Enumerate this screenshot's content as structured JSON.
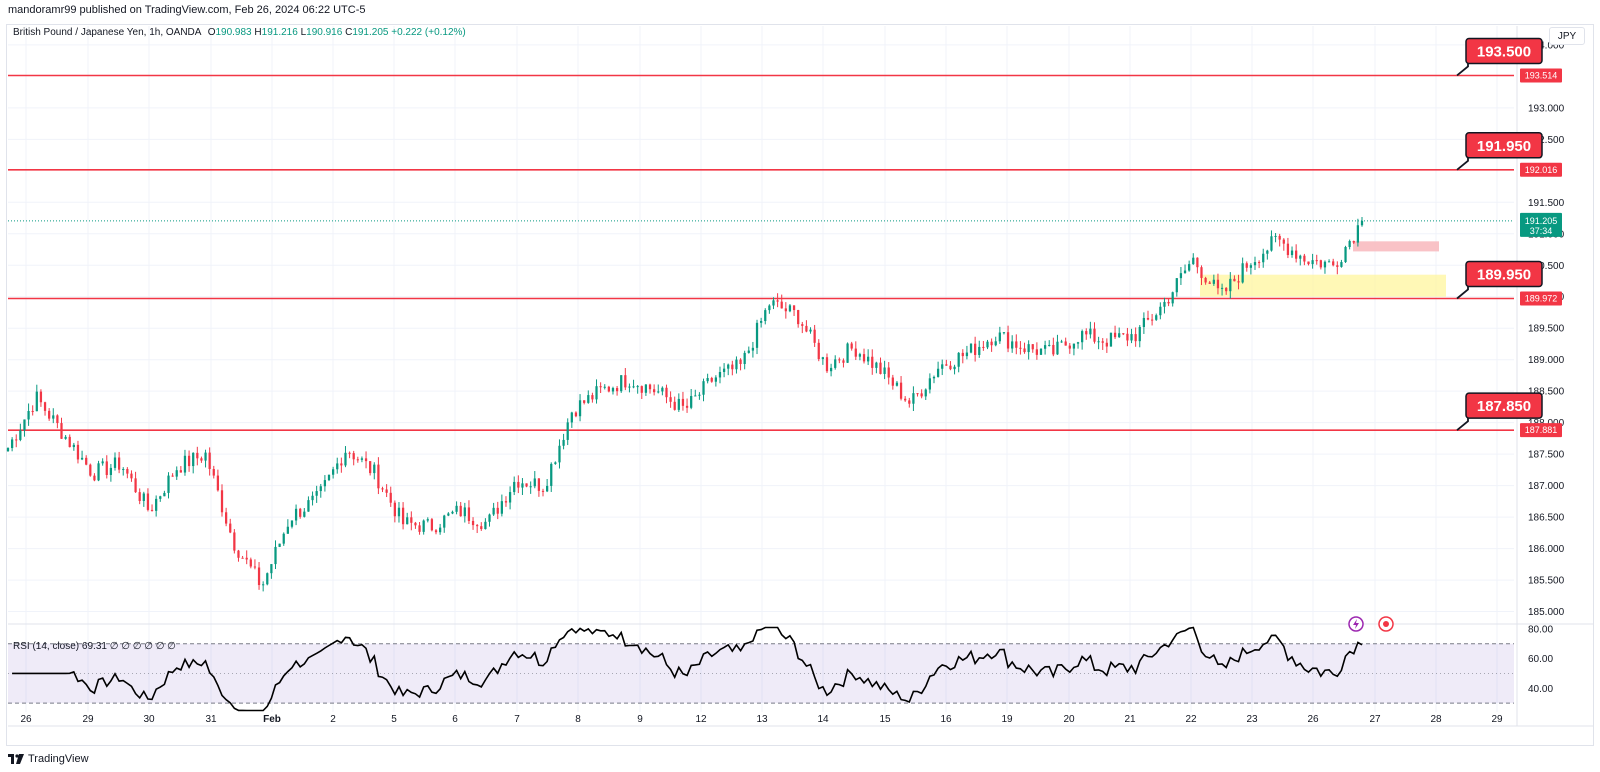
{
  "header": {
    "publisher": "mandoramr99 published on TradingView.com, Feb 26, 2024 06:22 UTC-5"
  },
  "legend": {
    "symbol": "British Pound / Japanese Yen, 1h, OANDA",
    "o_label": "O",
    "o": "190.983",
    "h_label": "H",
    "h": "191.216",
    "l_label": "L",
    "l": "190.916",
    "c_label": "C",
    "c": "191.205",
    "change": "+0.222 (+0.12%)"
  },
  "currency_button": "JPY",
  "rsi_legend": {
    "label": "RSI (14, close)",
    "value": "69.31",
    "extras": "∅ ∅ ∅ ∅ ∅ ∅"
  },
  "footer": {
    "brand": "TradingView"
  },
  "colors": {
    "up": "#089981",
    "down": "#f23645",
    "level_line": "#f23645",
    "callout_bg": "#f23645",
    "rsi_line": "#000000",
    "rsi_band": "#7e57c2",
    "yellow_zone": "#fff59d",
    "pink_zone": "#f8bbc0"
  },
  "icons": [
    "lightning-icon",
    "target-icon",
    "tradingview-logo-icon"
  ],
  "chart_data": {
    "type": "candlestick",
    "title": "British Pound / Japanese Yen, 1h, OANDA",
    "price_axis": {
      "min": 184.85,
      "max": 194.3,
      "ticks": [
        "185.000",
        "185.500",
        "186.000",
        "186.500",
        "187.000",
        "187.500",
        "188.000",
        "188.500",
        "189.000",
        "189.500",
        "190.000",
        "190.500",
        "191.000",
        "191.500",
        "192.500",
        "193.000",
        "194.000"
      ]
    },
    "time_axis": {
      "labels": [
        "26",
        "29",
        "30",
        "31",
        "Feb",
        "2",
        "5",
        "6",
        "7",
        "8",
        "9",
        "12",
        "13",
        "14",
        "15",
        "16",
        "19",
        "20",
        "21",
        "22",
        "23",
        "26",
        "27",
        "28",
        "29"
      ]
    },
    "last_price": {
      "value": "191.205",
      "countdown": "37:34"
    },
    "levels": [
      {
        "price": 193.514,
        "tag": "193.514",
        "callout": "193.500"
      },
      {
        "price": 192.016,
        "tag": "192.016",
        "callout": "191.950"
      },
      {
        "price": 189.972,
        "tag": "189.972",
        "callout": "189.950"
      },
      {
        "price": 187.881,
        "tag": "187.881",
        "callout": "187.850"
      }
    ],
    "zones": [
      {
        "name": "demand-zone",
        "from_price": 190.0,
        "to_price": 190.35,
        "start_label": "22",
        "color": "yellow"
      },
      {
        "name": "supply-zone",
        "from_price": 190.72,
        "to_price": 190.88,
        "start_label": "26",
        "color": "pink"
      }
    ],
    "close_path": [
      {
        "x": "26",
        "y": 187.6
      },
      {
        "x": "26",
        "y": 188.4
      },
      {
        "x": "29",
        "y": 187.8
      },
      {
        "x": "29",
        "y": 187.2
      },
      {
        "x": "30",
        "y": 187.35
      },
      {
        "x": "30",
        "y": 186.6
      },
      {
        "x": "31",
        "y": 187.3
      },
      {
        "x": "31",
        "y": 187.5
      },
      {
        "x": "31",
        "y": 186.1
      },
      {
        "x": "Feb",
        "y": 185.4
      },
      {
        "x": "Feb",
        "y": 186.5
      },
      {
        "x": "2",
        "y": 186.8
      },
      {
        "x": "2",
        "y": 187.6
      },
      {
        "x": "5",
        "y": 187.2
      },
      {
        "x": "5",
        "y": 186.4
      },
      {
        "x": "6",
        "y": 186.35
      },
      {
        "x": "6",
        "y": 186.6
      },
      {
        "x": "7",
        "y": 186.4
      },
      {
        "x": "7",
        "y": 187.1
      },
      {
        "x": "8",
        "y": 187.0
      },
      {
        "x": "8",
        "y": 188.2
      },
      {
        "x": "8",
        "y": 188.5
      },
      {
        "x": "9",
        "y": 188.7
      },
      {
        "x": "9",
        "y": 188.5
      },
      {
        "x": "12",
        "y": 188.2
      },
      {
        "x": "12",
        "y": 188.7
      },
      {
        "x": "13",
        "y": 188.9
      },
      {
        "x": "13",
        "y": 189.9
      },
      {
        "x": "13",
        "y": 189.7
      },
      {
        "x": "14",
        "y": 188.9
      },
      {
        "x": "14",
        "y": 189.2
      },
      {
        "x": "15",
        "y": 188.8
      },
      {
        "x": "15",
        "y": 188.3
      },
      {
        "x": "15",
        "y": 188.9
      },
      {
        "x": "16",
        "y": 189.1
      },
      {
        "x": "16",
        "y": 189.4
      },
      {
        "x": "19",
        "y": 189.2
      },
      {
        "x": "19",
        "y": 189.1
      },
      {
        "x": "20",
        "y": 189.4
      },
      {
        "x": "20",
        "y": 189.3
      },
      {
        "x": "21",
        "y": 189.4
      },
      {
        "x": "21",
        "y": 189.9
      },
      {
        "x": "22",
        "y": 190.6
      },
      {
        "x": "22",
        "y": 190.0
      },
      {
        "x": "22",
        "y": 190.55
      },
      {
        "x": "23",
        "y": 190.9
      },
      {
        "x": "23",
        "y": 190.6
      },
      {
        "x": "26",
        "y": 190.5
      },
      {
        "x": "26",
        "y": 191.205
      }
    ],
    "rsi": {
      "name": "RSI (14, close)",
      "last": 69.31,
      "axis_ticks": [
        "80.00",
        "60.00",
        "40.00"
      ],
      "upper_band": 70,
      "lower_band": 30,
      "ylim": [
        24,
        82
      ]
    }
  }
}
